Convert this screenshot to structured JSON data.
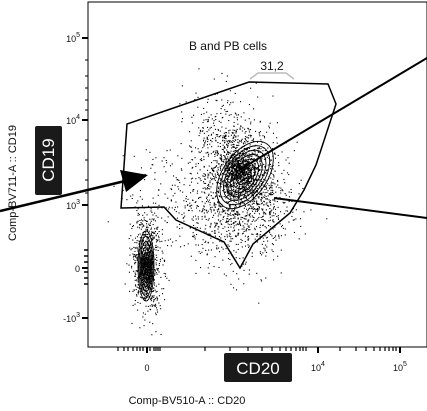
{
  "chart_data": {
    "type": "scatter",
    "subtype": "flow-cytometry-contour-dot-plot",
    "xlabel": "Comp-BV510-A :: CD20",
    "ylabel": "Comp-BV711-A :: CD19",
    "x_scale": "biexponential",
    "y_scale": "biexponential",
    "x_ticks": [
      {
        "base": "0",
        "exp": ""
      },
      {
        "base": "10",
        "exp": "4"
      },
      {
        "base": "10",
        "exp": "5"
      }
    ],
    "y_ticks": [
      {
        "base": "10",
        "exp": "5"
      },
      {
        "base": "10",
        "exp": "4"
      },
      {
        "base": "10",
        "exp": "3"
      },
      {
        "base": "0",
        "exp": ""
      },
      {
        "base": "-10",
        "exp": "3"
      }
    ],
    "gate": {
      "name": "B and PB cells",
      "percent": "31,2"
    },
    "populations": [
      {
        "label": "CD19+CD20+ (gated)",
        "center_x_approx": 6000,
        "center_y_approx": 4500
      },
      {
        "label": "CD19 low/neg, CD20 neg",
        "center_x_approx": 0,
        "center_y_approx": 0
      }
    ],
    "grid": false,
    "legend": "none"
  },
  "annotations": {
    "cd19_badge": "CD19",
    "cd20_badge": "CD20"
  },
  "colors": {
    "dots": "#000000",
    "badge_background": "#1a1a1a",
    "badge_text": "#ffffff",
    "gate_line": "#000000",
    "percent_bracket": "#bbbbbb"
  }
}
